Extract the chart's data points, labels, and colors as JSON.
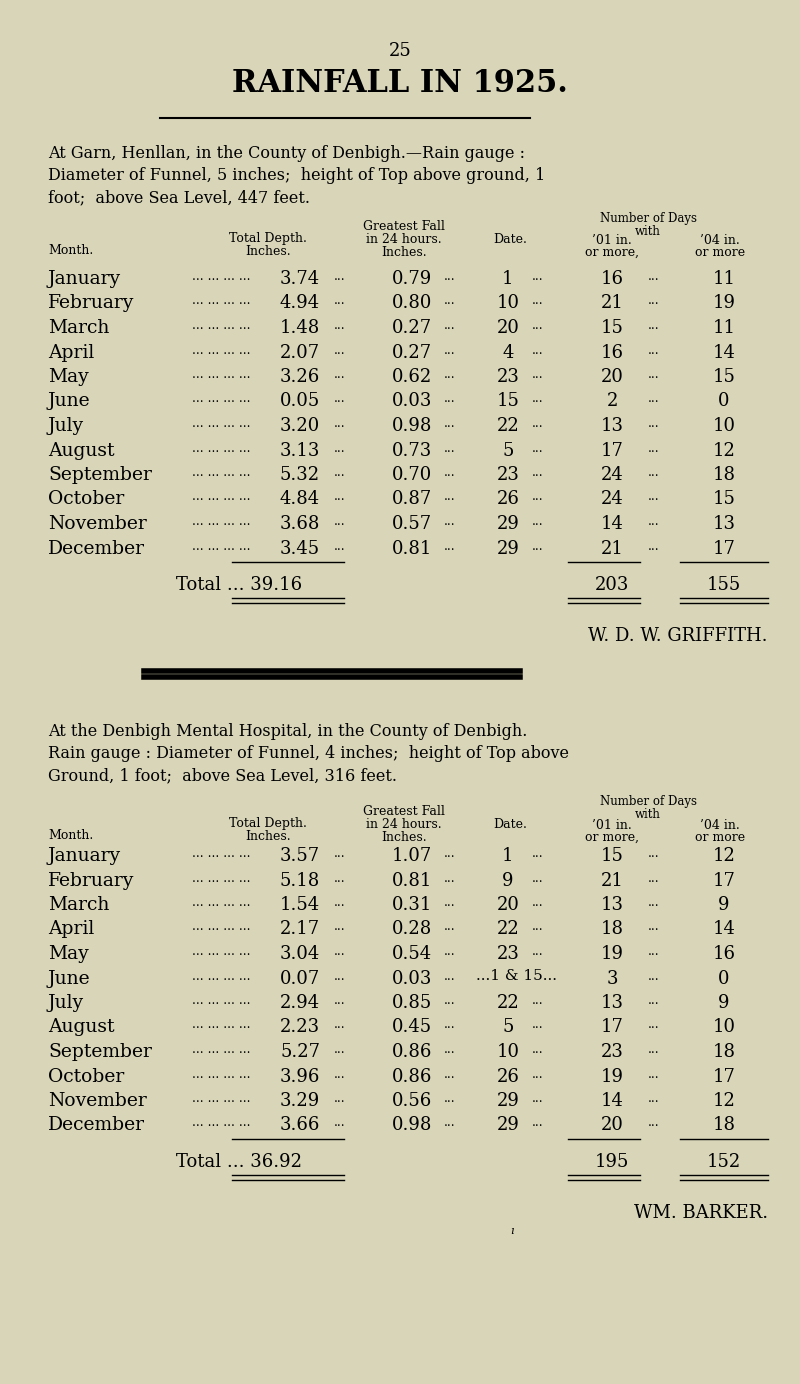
{
  "bg_color": "#d8d5b8",
  "page_number": "25",
  "main_title": "RAINFALL IN 1925.",
  "section1": {
    "intro": [
      "At Garn, Henllan, in the County of Denbigh.—Rain gauge :",
      "Diameter of Funnel, 5 inches;  height of Top above ground, 1",
      "foot;  above Sea Level, 447 feet."
    ],
    "months": [
      "January",
      "February",
      "March",
      "April",
      "May",
      "June",
      "July",
      "August",
      "September",
      "October",
      "November",
      "December"
    ],
    "total_depth": [
      "3.74",
      "4.94",
      "1.48",
      "2.07",
      "3.26",
      "0.05",
      "3.20",
      "3.13",
      "5.32",
      "4.84",
      "3.68",
      "3.45"
    ],
    "greatest_fall": [
      "0.79",
      "0.80",
      "0.27",
      "0.27",
      "0.62",
      "0.03",
      "0.98",
      "0.73",
      "0.70",
      "0.87",
      "0.57",
      "0.81"
    ],
    "date": [
      "1",
      "10",
      "20",
      "4",
      "23",
      "15",
      "22",
      "5",
      "23",
      "26",
      "29",
      "29"
    ],
    "days_01": [
      "16",
      "21",
      "15",
      "16",
      "20",
      "2",
      "13",
      "17",
      "24",
      "24",
      "14",
      "21"
    ],
    "days_04": [
      "11",
      "19",
      "11",
      "14",
      "15",
      "0",
      "10",
      "12",
      "18",
      "15",
      "13",
      "17"
    ],
    "total_depth_val": "39.16",
    "total_01": "203",
    "total_04": "155",
    "signature": "W. D. W. GRIFFITH."
  },
  "section2": {
    "intro": [
      "At the Denbigh Mental Hospital, in the County of Denbigh.",
      "Rain gauge : Diameter of Funnel, 4 inches;  height of Top above",
      "Ground, 1 foot;  above Sea Level, 316 feet."
    ],
    "months": [
      "January",
      "February",
      "March",
      "April",
      "May",
      "June",
      "July",
      "August",
      "September",
      "October",
      "November",
      "December"
    ],
    "total_depth": [
      "3.57",
      "5.18",
      "1.54",
      "2.17",
      "3.04",
      "0.07",
      "2.94",
      "2.23",
      "5.27",
      "3.96",
      "3.29",
      "3.66"
    ],
    "greatest_fall": [
      "1.07",
      "0.81",
      "0.31",
      "0.28",
      "0.54",
      "0.03",
      "0.85",
      "0.45",
      "0.86",
      "0.86",
      "0.56",
      "0.98"
    ],
    "date": [
      "1",
      "9",
      "20",
      "22",
      "23",
      "1 & 15",
      "22",
      "5",
      "10",
      "26",
      "29",
      "29"
    ],
    "days_01": [
      "15",
      "21",
      "13",
      "18",
      "19",
      "3",
      "13",
      "17",
      "23",
      "19",
      "14",
      "20"
    ],
    "days_04": [
      "12",
      "17",
      "9",
      "14",
      "16",
      "0",
      "9",
      "10",
      "18",
      "17",
      "12",
      "18"
    ],
    "total_depth_val": "36.92",
    "total_01": "195",
    "total_04": "152",
    "signature": "WM. BARKER."
  }
}
